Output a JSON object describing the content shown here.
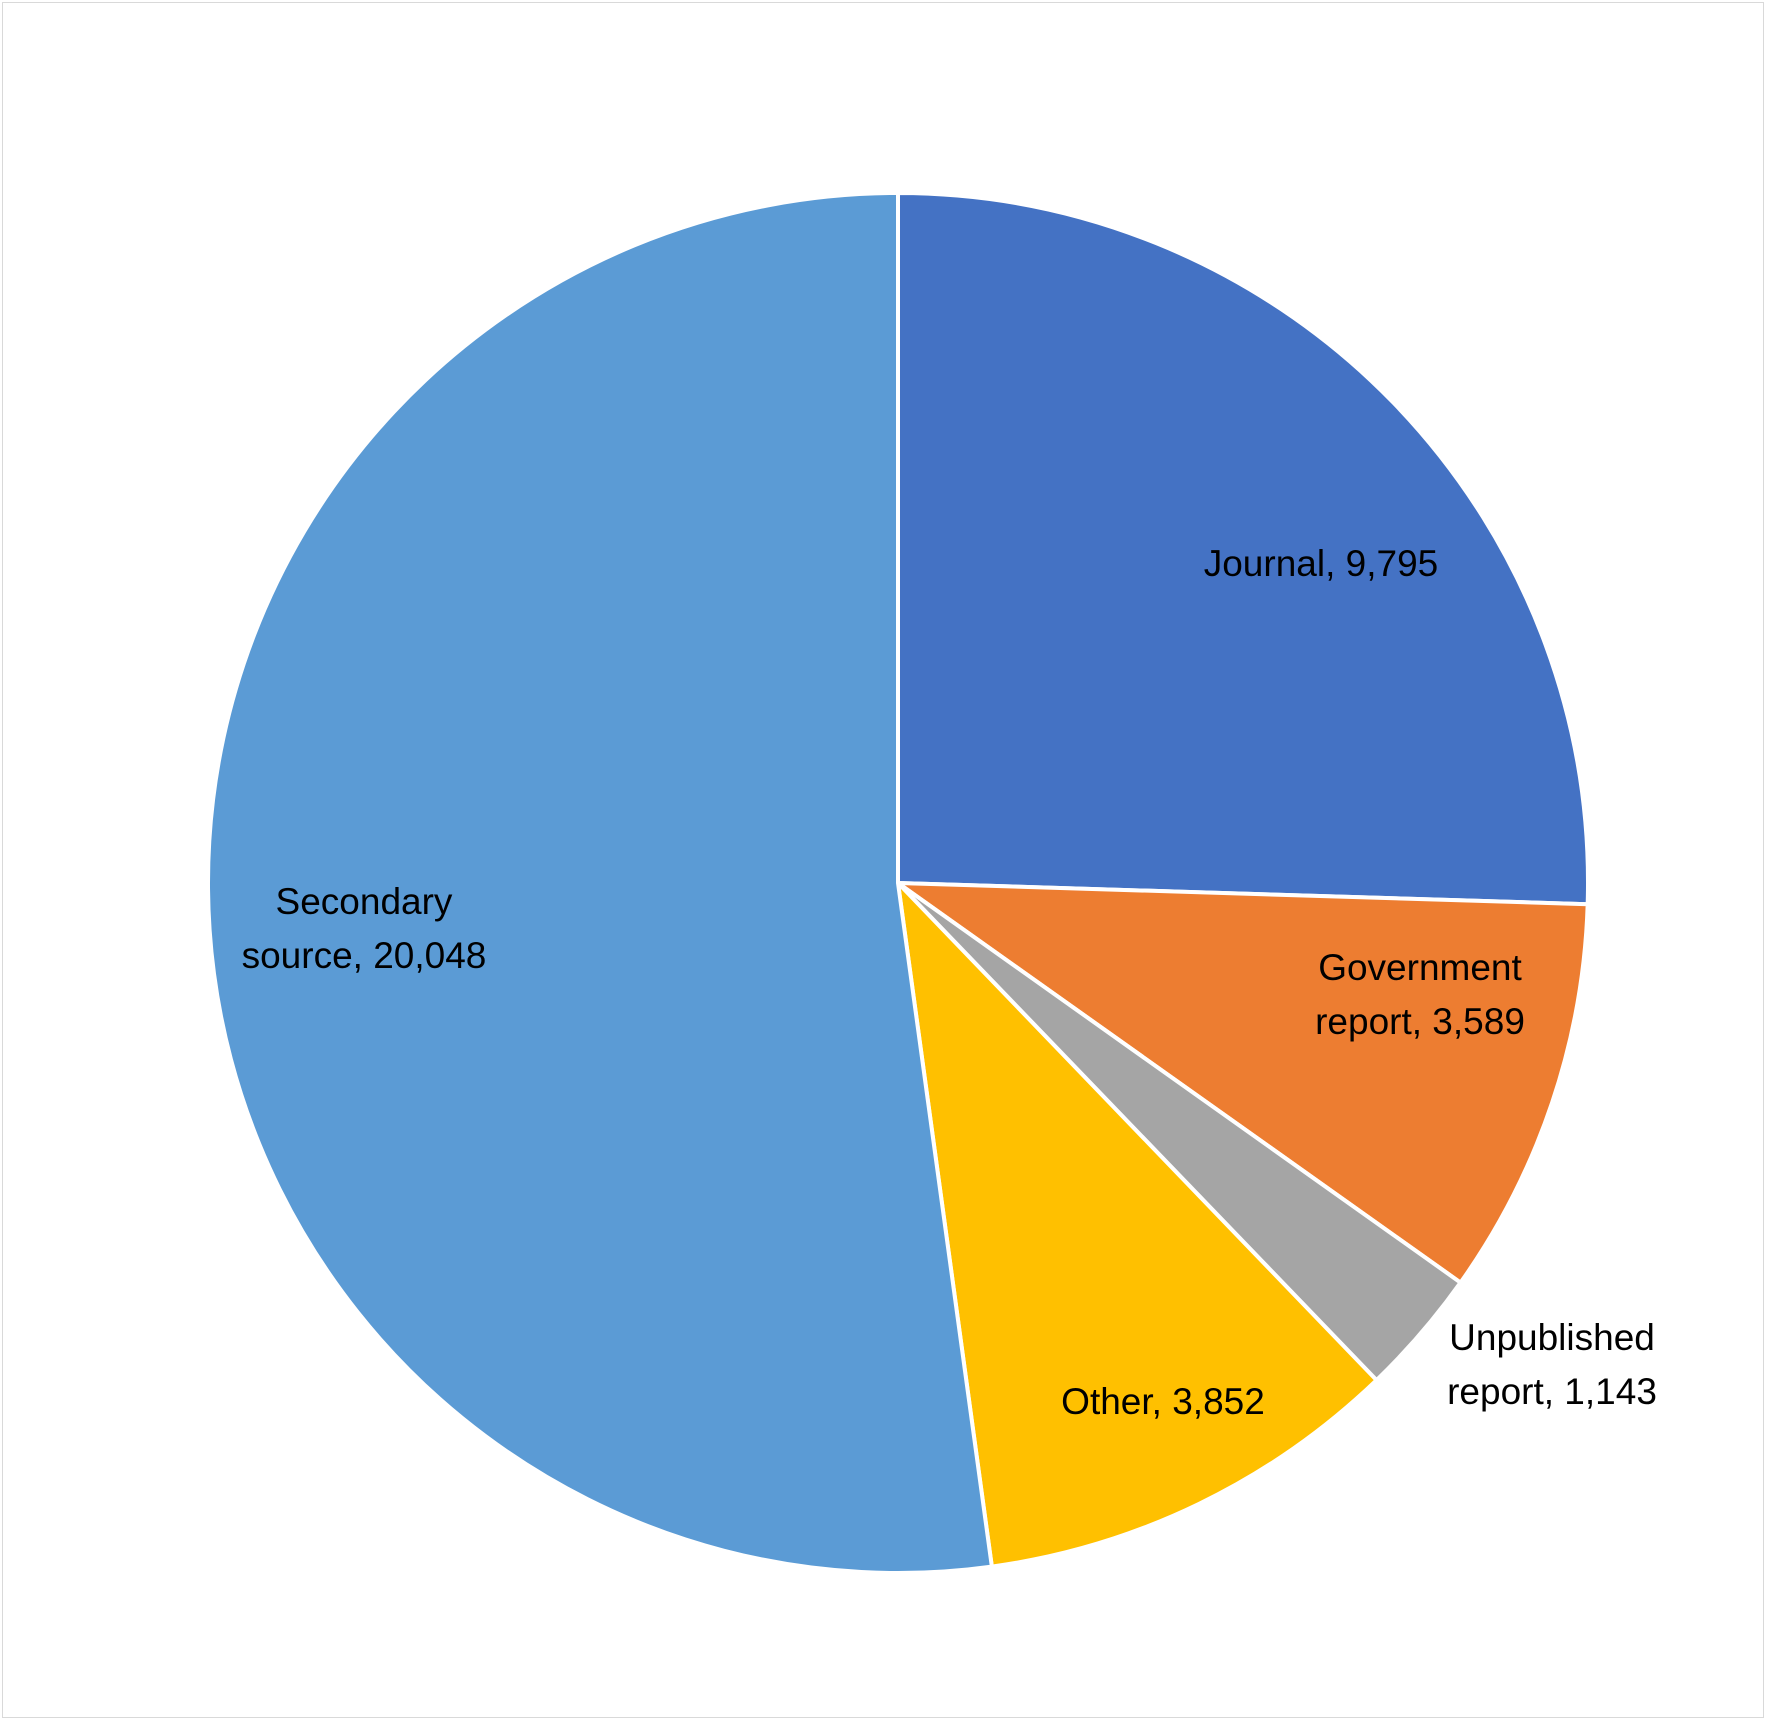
{
  "chart_data": {
    "type": "pie",
    "start_angle_deg": 0,
    "direction": "clockwise",
    "slice_border_color": "#ffffff",
    "slices": [
      {
        "label": "Journal",
        "value": 9795,
        "value_text": "9,795",
        "color": "#4472C4",
        "label_lines": [
          "Journal, 9,795"
        ]
      },
      {
        "label": "Government report",
        "value": 3589,
        "value_text": "3,589",
        "color": "#ED7D31",
        "label_lines": [
          "Government",
          "report, 3,589"
        ]
      },
      {
        "label": "Unpublished report",
        "value": 1143,
        "value_text": "1,143",
        "color": "#A5A5A5",
        "label_lines": [
          "Unpublished",
          "report, 1,143"
        ]
      },
      {
        "label": "Other",
        "value": 3852,
        "value_text": "3,852",
        "color": "#FFC000",
        "label_lines": [
          "Other, 3,852"
        ]
      },
      {
        "label": "Secondary source",
        "value": 20048,
        "value_text": "20,048",
        "color": "#5B9BD5",
        "label_lines": [
          "Secondary",
          "source, 20,048"
        ]
      }
    ]
  }
}
